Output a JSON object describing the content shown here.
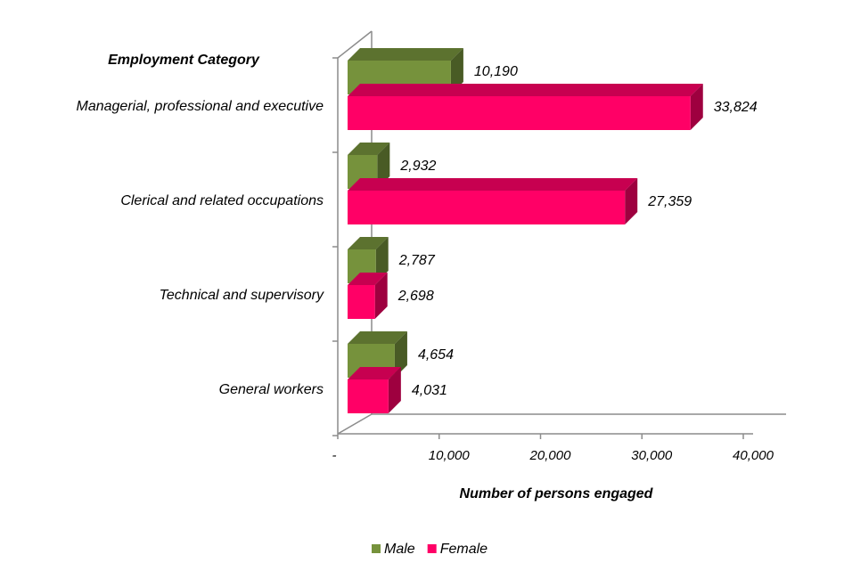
{
  "chart_data": {
    "type": "bar",
    "orientation": "horizontal",
    "three_d": true,
    "category_axis_title": "Employment Category",
    "xlabel": "Number of persons engaged",
    "categories": [
      "Managerial, professional and executive",
      "Clerical and related occupations",
      "Technical and supervisory",
      "General workers"
    ],
    "series": [
      {
        "name": "Male",
        "color": "#76923c",
        "values": [
          10190,
          2932,
          2787,
          4654
        ],
        "labels": [
          "10,190",
          "2,932",
          "2,787",
          "4,654"
        ]
      },
      {
        "name": "Female",
        "color": "#ff0066",
        "values": [
          33824,
          27359,
          2698,
          4031
        ],
        "labels": [
          "33,824",
          "27,359",
          "2,698",
          "4,031"
        ]
      }
    ],
    "xlim": [
      0,
      40000
    ],
    "xticks": [
      0,
      10000,
      20000,
      30000,
      40000
    ],
    "xtick_labels": [
      "-",
      "10,000",
      "20,000",
      "30,000",
      "40,000"
    ],
    "grid": false,
    "legend_position": "bottom"
  }
}
